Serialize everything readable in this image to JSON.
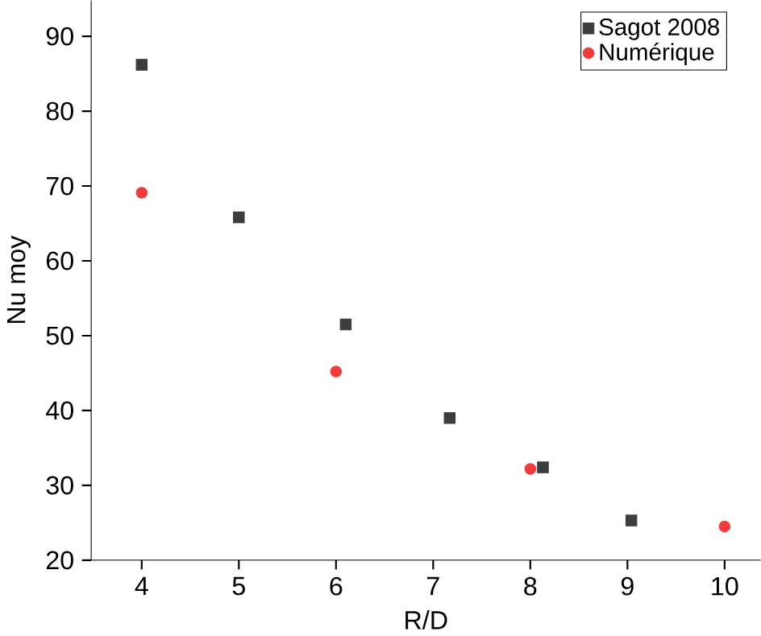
{
  "chart_data": {
    "type": "scatter",
    "xlabel": "R/D",
    "ylabel": "Nu moy",
    "xlim": [
      3.48,
      10.37
    ],
    "ylim": [
      20,
      94.8
    ],
    "xticks": [
      4,
      5,
      6,
      7,
      8,
      9,
      10
    ],
    "yticks": [
      20,
      30,
      40,
      50,
      60,
      70,
      80,
      90
    ],
    "legend": "top right",
    "grid": false,
    "series": [
      {
        "name": "Sagot 2008",
        "color": "#3d3d3d",
        "marker": "square",
        "x": [
          4,
          5,
          6.1,
          7.17,
          8.13,
          9.04
        ],
        "values": [
          86.2,
          65.8,
          51.5,
          39,
          32.4,
          25.3
        ]
      },
      {
        "name": "Numérique",
        "color": "#f03c3c",
        "marker": "circle",
        "x": [
          4,
          6,
          8,
          10
        ],
        "values": [
          69.1,
          45.2,
          32.2,
          24.5
        ]
      }
    ]
  }
}
